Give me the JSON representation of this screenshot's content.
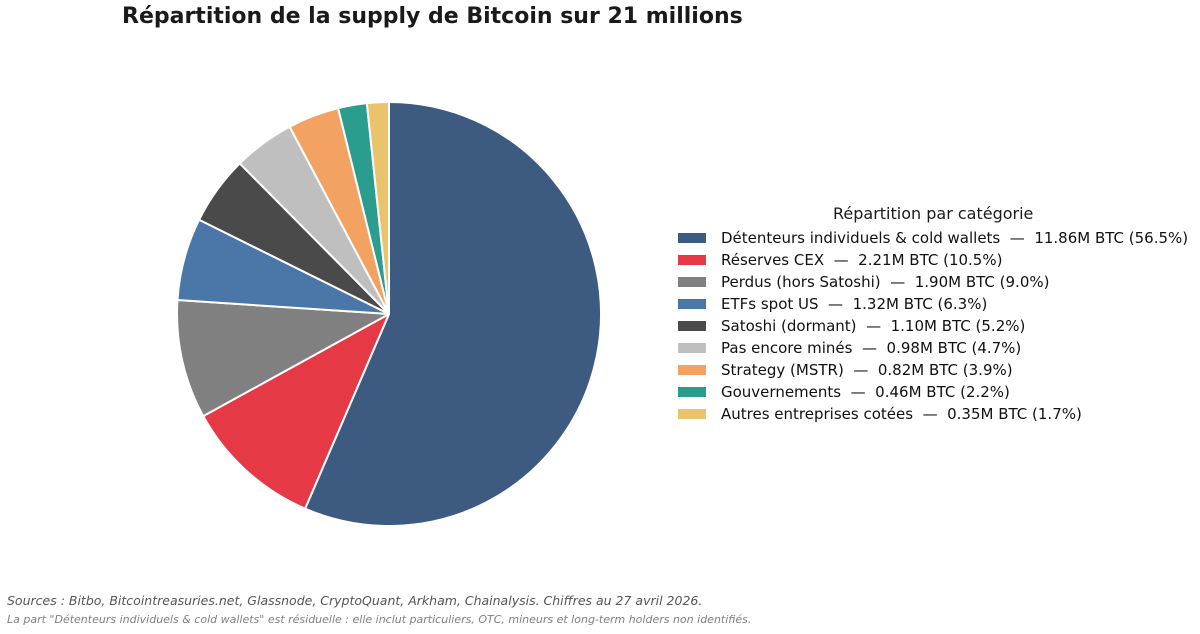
{
  "chart_data": {
    "type": "pie",
    "title": "Répartition de la supply de Bitcoin sur 21 millions",
    "legend_title": "Répartition par catégorie",
    "legend_placement": "right",
    "start": "top, clockwise",
    "slices": [
      {
        "label": "Détenteurs individuels & cold wallets",
        "value": 11.86,
        "percent": 56.5,
        "legend_text": "Détenteurs individuels & cold wallets  —  11.86M BTC (56.5%)",
        "color": "#3d5a80"
      },
      {
        "label": "Réserves CEX",
        "value": 2.21,
        "percent": 10.5,
        "legend_text": "Réserves CEX  —  2.21M BTC (10.5%)",
        "color": "#e63946"
      },
      {
        "label": "Perdus (hors Satoshi)",
        "value": 1.9,
        "percent": 9.0,
        "legend_text": "Perdus (hors Satoshi)  —  1.90M BTC (9.0%)",
        "color": "#808080"
      },
      {
        "label": "ETFs spot US",
        "value": 1.32,
        "percent": 6.3,
        "legend_text": "ETFs spot US  —  1.32M BTC (6.3%)",
        "color": "#4a76a8"
      },
      {
        "label": "Satoshi (dormant)",
        "value": 1.1,
        "percent": 5.2,
        "legend_text": "Satoshi (dormant)  —  1.10M BTC (5.2%)",
        "color": "#4a4a4a"
      },
      {
        "label": "Pas encore minés",
        "value": 0.98,
        "percent": 4.7,
        "legend_text": "Pas encore minés  —  0.98M BTC (4.7%)",
        "color": "#bfbfbf"
      },
      {
        "label": "Strategy (MSTR)",
        "value": 0.82,
        "percent": 3.9,
        "legend_text": "Strategy (MSTR)  —  0.82M BTC (3.9%)",
        "color": "#f4a261"
      },
      {
        "label": "Gouvernements",
        "value": 0.46,
        "percent": 2.2,
        "legend_text": "Gouvernements  —  0.46M BTC (2.2%)",
        "color": "#2a9d8f"
      },
      {
        "label": "Autres entreprises cotées",
        "value": 0.35,
        "percent": 1.7,
        "legend_text": "Autres entreprises cotées  —  0.35M BTC (1.7%)",
        "color": "#e9c46a"
      }
    ]
  },
  "footer": {
    "sources": "Sources : Bitbo, Bitcointreasuries.net, Glassnode, CryptoQuant, Arkham, Chainalysis. Chiffres au 27 avril 2026.",
    "note": "La part \"Détenteurs individuels & cold wallets\" est résiduelle : elle inclut particuliers, OTC, mineurs et long-term holders non identifiés."
  }
}
